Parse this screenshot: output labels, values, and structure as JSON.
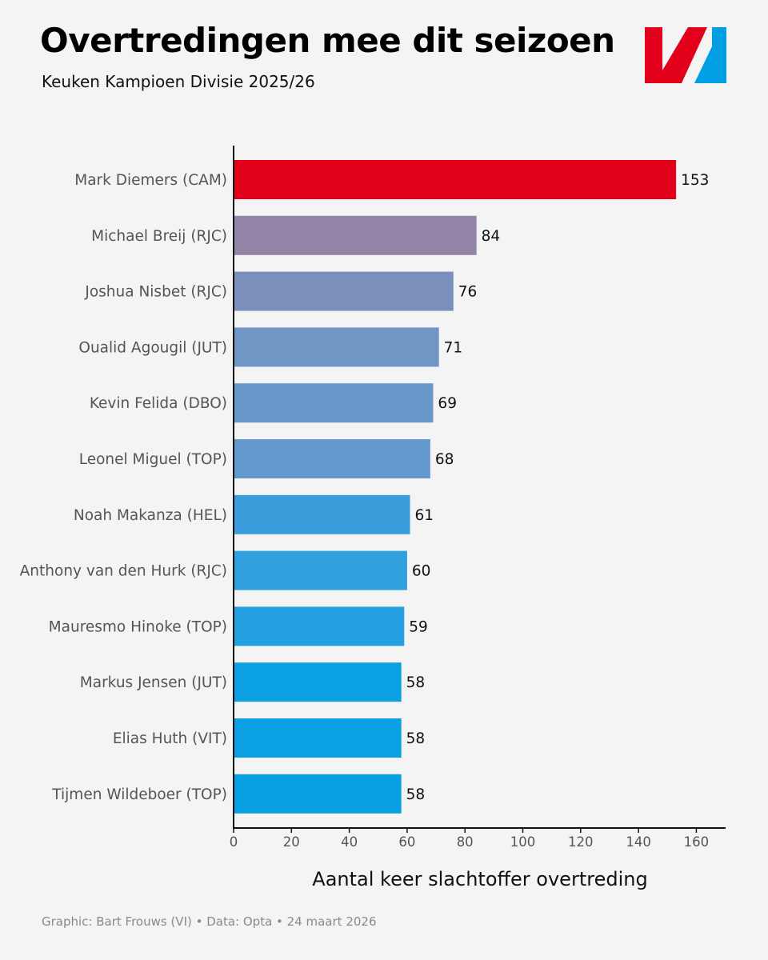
{
  "header": {
    "title": "Overtredingen mee dit seizoen",
    "subtitle": "Keuken Kampioen Divisie 2025/26"
  },
  "footer": {
    "credit": "Graphic: Bart Frouws (VI) • Data: Opta • 24 maart 2026"
  },
  "brand": {
    "logo_red": "#e2001a",
    "logo_blue": "#009fe3"
  },
  "chart_data": {
    "type": "bar",
    "orientation": "horizontal",
    "title": "Overtredingen mee dit seizoen",
    "subtitle": "Keuken Kampioen Divisie 2025/26",
    "xlabel": "Aantal keer slachtoffer overtreding",
    "ylabel": "",
    "xlim": [
      0,
      170
    ],
    "xticks": [
      0,
      20,
      40,
      60,
      80,
      100,
      120,
      140,
      160
    ],
    "grid": false,
    "categories": [
      "Mark Diemers (CAM)",
      "Michael Breij (RJC)",
      "Joshua Nisbet (RJC)",
      "Oualid Agougil (JUT)",
      "Kevin Felida (DBO)",
      "Leonel Miguel (TOP)",
      "Noah Makanza (HEL)",
      "Anthony van den Hurk (RJC)",
      "Mauresmo Hinoke (TOP)",
      "Markus Jensen (JUT)",
      "Elias Huth (VIT)",
      "Tijmen Wildeboer (TOP)"
    ],
    "values": [
      153,
      84,
      76,
      71,
      69,
      68,
      61,
      60,
      59,
      58,
      58,
      58
    ],
    "colors": [
      "#e2001a",
      "#9285a8",
      "#7b8fbb",
      "#7096c5",
      "#6898c9",
      "#6398cc",
      "#3b9ddb",
      "#30a0de",
      "#25a0e0",
      "#0ba0e2",
      "#0aa0e2",
      "#09a0e3"
    ]
  }
}
